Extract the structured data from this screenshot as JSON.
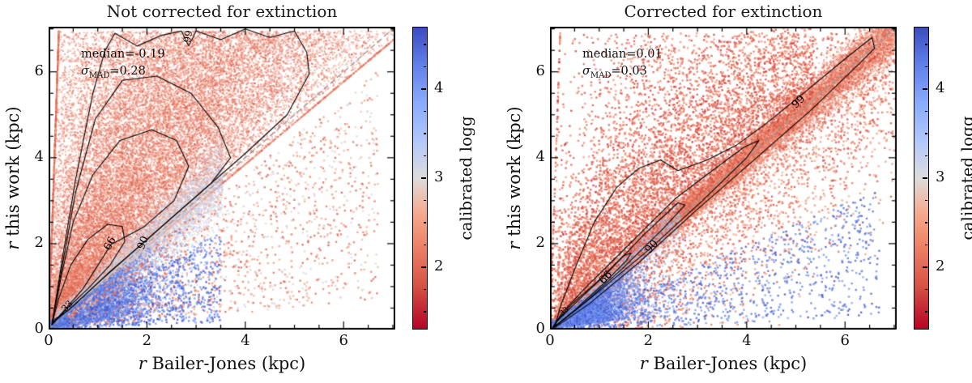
{
  "figure": {
    "background": "#ffffff"
  },
  "colormap": {
    "stops": [
      [
        0,
        "#b40426"
      ],
      [
        0.14,
        "#d65244"
      ],
      [
        0.28,
        "#ee8468"
      ],
      [
        0.38,
        "#f6a98c"
      ],
      [
        0.5,
        "#dddcdc"
      ],
      [
        0.62,
        "#b2c9fb"
      ],
      [
        0.75,
        "#88abfd"
      ],
      [
        0.88,
        "#5f7fe8"
      ],
      [
        1,
        "#3b4cc0"
      ]
    ]
  },
  "chart_data": [
    {
      "type": "scatter",
      "panel": "left",
      "title": "Not corrected for extinction",
      "xlabel_italic": "r",
      "xlabel_rest": " Bailer-Jones (kpc)",
      "ylabel_italic": "r",
      "ylabel_rest": " this work (kpc)",
      "xlim": [
        0,
        7.05
      ],
      "ylim": [
        0,
        7.05
      ],
      "xticks_major": [
        0,
        2,
        4,
        6
      ],
      "yticks_major": [
        0,
        2,
        4,
        6
      ],
      "tick_minor_step": 0.5,
      "annotation": {
        "median": "median=-0.19",
        "sigma_symbol": "σ",
        "sigma_sub": "MAD",
        "sigma_value": "=0.28",
        "x": 0.72,
        "y": 6.42
      },
      "identity_line": {
        "style": "dashed",
        "color": "#999999",
        "from": [
          0,
          0
        ],
        "to": [
          7.05,
          7.05
        ]
      },
      "contour_levels": [
        33,
        66,
        90,
        99
      ],
      "contours": [
        {
          "level": 33,
          "points": [
            [
              0.06,
              0.1
            ],
            [
              0.2,
              0.7
            ],
            [
              0.45,
              1.5
            ],
            [
              0.8,
              2.1
            ],
            [
              1.2,
              2.45
            ],
            [
              1.5,
              2.4
            ],
            [
              1.55,
              2.05
            ],
            [
              1.25,
              1.5
            ],
            [
              0.8,
              0.95
            ],
            [
              0.38,
              0.5
            ],
            [
              0.06,
              0.1
            ]
          ]
        },
        {
          "level": 66,
          "points": [
            [
              0.07,
              0.12
            ],
            [
              0.25,
              1.2
            ],
            [
              0.5,
              2.5
            ],
            [
              0.9,
              3.6
            ],
            [
              1.45,
              4.4
            ],
            [
              2.1,
              4.65
            ],
            [
              2.6,
              4.4
            ],
            [
              2.85,
              3.8
            ],
            [
              2.55,
              3.0
            ],
            [
              1.95,
              2.4
            ],
            [
              1.27,
              1.98
            ],
            [
              0.7,
              0.95
            ],
            [
              0.07,
              0.12
            ]
          ]
        },
        {
          "level": 90,
          "points": [
            [
              0.07,
              0.15
            ],
            [
              0.28,
              1.5
            ],
            [
              0.55,
              3.2
            ],
            [
              0.95,
              4.9
            ],
            [
              1.5,
              5.8
            ],
            [
              2.2,
              5.9
            ],
            [
              2.9,
              5.5
            ],
            [
              3.45,
              4.7
            ],
            [
              3.7,
              4.0
            ],
            [
              3.3,
              3.4
            ],
            [
              2.6,
              2.7
            ],
            [
              1.93,
              2.02
            ],
            [
              1.2,
              1.3
            ],
            [
              0.5,
              0.55
            ],
            [
              0.07,
              0.15
            ]
          ]
        },
        {
          "level": 99,
          "points": [
            [
              0.08,
              0.2
            ],
            [
              0.3,
              1.8
            ],
            [
              0.55,
              3.5
            ],
            [
              0.9,
              5.5
            ],
            [
              1.15,
              6.5
            ],
            [
              1.35,
              6.9
            ],
            [
              1.8,
              6.6
            ],
            [
              2.3,
              6.85
            ],
            [
              2.7,
              6.95
            ],
            [
              2.85,
              6.6
            ],
            [
              3.0,
              6.95
            ],
            [
              3.5,
              6.75
            ],
            [
              4.0,
              7.0
            ],
            [
              4.5,
              6.8
            ],
            [
              5.0,
              6.95
            ],
            [
              5.25,
              6.45
            ],
            [
              5.3,
              5.95
            ],
            [
              4.85,
              5.0
            ],
            [
              4.0,
              4.1
            ],
            [
              3.0,
              3.1
            ],
            [
              2.0,
              2.1
            ],
            [
              1.0,
              1.08
            ],
            [
              0.4,
              0.45
            ],
            [
              0.08,
              0.2
            ]
          ]
        }
      ],
      "contour_labels": [
        {
          "text": "33",
          "x": 0.38,
          "y": 0.55,
          "rot": -47,
          "fs": 11
        },
        {
          "text": "66",
          "x": 1.25,
          "y": 2.0,
          "rot": -62,
          "fs": 13
        },
        {
          "text": "90",
          "x": 1.93,
          "y": 2.02,
          "rot": -68,
          "fs": 13
        },
        {
          "text": "99",
          "x": 2.84,
          "y": 6.82,
          "rot": -80,
          "fs": 12
        }
      ],
      "clouds": [
        {
          "kind": "fan",
          "seed": 11,
          "n": 26000,
          "ymax": 6.95,
          "ypow": 0.8,
          "betaMu": 0.5,
          "betaSig": 0.3,
          "logg": [
            1.7,
            2.6
          ],
          "alpha": 0.5,
          "size": 2
        },
        {
          "kind": "band",
          "seed": 12,
          "n": 7000,
          "x0": 0.15,
          "xr": 3.4,
          "xpow": 1.2,
          "rel": 0.13,
          "abs": 0.1,
          "logg": [
            2.5,
            3.6
          ],
          "alpha": 0.5,
          "size": 2
        },
        {
          "kind": "dwarf",
          "seed": 13,
          "n": 9000,
          "sx": 0.95,
          "f0": 0.15,
          "fr": 0.75,
          "logg": [
            3.85,
            4.7
          ],
          "alpha": 0.55,
          "size": 2
        },
        {
          "kind": "wedge",
          "seed": 14,
          "n": 1600,
          "x0": 0.4,
          "xr": 6.3,
          "f0": 0.1,
          "fr": 0.8,
          "logg": [
            1.8,
            3.2
          ],
          "alpha": 0.8,
          "size": 2.4
        },
        {
          "kind": "wedge",
          "seed": 15,
          "n": 900,
          "x0": 0.3,
          "xr": 3.2,
          "f0": 0.05,
          "fr": 0.6,
          "logg": [
            3.9,
            4.7
          ],
          "alpha": 0.8,
          "size": 2.4
        }
      ],
      "colorbar": {
        "label": "calibrated logg",
        "range": [
          1.3,
          4.7
        ],
        "ticks_major": [
          2,
          3,
          4
        ],
        "tick_minor_step": 0.25
      }
    },
    {
      "type": "scatter",
      "panel": "right",
      "title": "Corrected for extinction",
      "xlabel_italic": "r",
      "xlabel_rest": " Bailer-Jones (kpc)",
      "ylabel_italic": "r",
      "ylabel_rest": " this work (kpc)",
      "xlim": [
        0,
        7.05
      ],
      "ylim": [
        0,
        7.05
      ],
      "xticks_major": [
        0,
        2,
        4,
        6
      ],
      "yticks_major": [
        0,
        2,
        4,
        6
      ],
      "tick_minor_step": 0.5,
      "annotation": {
        "median": "median=0.01",
        "sigma_symbol": "σ",
        "sigma_sub": "MAD",
        "sigma_value": "=0.03",
        "x": 0.72,
        "y": 6.42
      },
      "identity_line": {
        "style": "dashed",
        "color": "#999999",
        "from": [
          0,
          0
        ],
        "to": [
          7.05,
          7.05
        ]
      },
      "contour_levels": [
        33,
        66,
        90,
        99
      ],
      "contours": [
        {
          "level": 33,
          "points": [
            [
              0.04,
              0.02
            ],
            [
              0.5,
              0.45
            ],
            [
              1.1,
              1.08
            ],
            [
              1.55,
              1.6
            ],
            [
              1.65,
              1.78
            ],
            [
              1.5,
              1.72
            ],
            [
              0.95,
              1.1
            ],
            [
              0.45,
              0.6
            ],
            [
              0.12,
              0.18
            ],
            [
              0.04,
              0.02
            ]
          ]
        },
        {
          "level": 66,
          "points": [
            [
              0.05,
              0.03
            ],
            [
              0.7,
              0.62
            ],
            [
              1.5,
              1.45
            ],
            [
              2.3,
              2.35
            ],
            [
              2.75,
              2.9
            ],
            [
              2.6,
              2.95
            ],
            [
              1.9,
              2.2
            ],
            [
              1.13,
              1.28
            ],
            [
              0.5,
              0.6
            ],
            [
              0.15,
              0.2
            ],
            [
              0.05,
              0.03
            ]
          ]
        },
        {
          "level": 90,
          "points": [
            [
              0.06,
              0.03
            ],
            [
              0.9,
              0.8
            ],
            [
              2.0,
              1.85
            ],
            [
              3.1,
              3.0
            ],
            [
              4.0,
              4.0
            ],
            [
              4.25,
              4.4
            ],
            [
              3.95,
              4.25
            ],
            [
              3.3,
              3.7
            ],
            [
              2.55,
              3.05
            ],
            [
              2.08,
              2.52
            ],
            [
              1.45,
              1.8
            ],
            [
              0.7,
              0.95
            ],
            [
              0.25,
              0.4
            ],
            [
              0.06,
              0.03
            ]
          ]
        },
        {
          "level": 99,
          "points": [
            [
              0.1,
              0.05
            ],
            [
              0.8,
              0.6
            ],
            [
              1.8,
              1.55
            ],
            [
              3.0,
              2.8
            ],
            [
              4.2,
              4.0
            ],
            [
              5.3,
              5.1
            ],
            [
              6.3,
              6.2
            ],
            [
              6.6,
              6.55
            ],
            [
              6.55,
              6.8
            ],
            [
              6.0,
              6.3
            ],
            [
              5.1,
              5.45
            ],
            [
              4.4,
              4.8
            ],
            [
              3.8,
              4.3
            ],
            [
              3.2,
              3.95
            ],
            [
              2.6,
              3.7
            ],
            [
              2.25,
              3.95
            ],
            [
              1.8,
              3.75
            ],
            [
              1.35,
              3.3
            ],
            [
              0.9,
              2.5
            ],
            [
              0.5,
              1.4
            ],
            [
              0.2,
              0.5
            ],
            [
              0.1,
              0.05
            ]
          ]
        }
      ],
      "contour_labels": [
        {
          "text": "33",
          "x": 0.3,
          "y": 0.42,
          "rot": -45,
          "fs": 9
        },
        {
          "text": "66",
          "x": 1.14,
          "y": 1.21,
          "rot": -48,
          "fs": 13
        },
        {
          "text": "90",
          "x": 2.08,
          "y": 1.92,
          "rot": -47,
          "fs": 13
        },
        {
          "text": "99",
          "x": 5.05,
          "y": 5.3,
          "rot": -44,
          "fs": 13
        }
      ],
      "clouds": [
        {
          "kind": "band",
          "seed": 21,
          "n": 22000,
          "x0": 0.02,
          "xr": 7.0,
          "xpow": 1.35,
          "rel": 0.05,
          "abs": 0.05,
          "logg": [
            1.7,
            2.6
          ],
          "alpha": 0.5,
          "size": 2
        },
        {
          "kind": "band",
          "seed": 26,
          "n": 3000,
          "x0": 0.05,
          "xr": 2.6,
          "xpow": 1.2,
          "rel": 0.1,
          "abs": 0.06,
          "logg": [
            2.7,
            3.9
          ],
          "alpha": 0.5,
          "size": 2
        },
        {
          "kind": "fan",
          "seed": 27,
          "n": 3800,
          "ymax": 6.9,
          "ypow": 0.85,
          "betaMu": 0.55,
          "betaSig": 0.27,
          "logg": [
            1.6,
            2.5
          ],
          "alpha": 0.8,
          "size": 2.4
        },
        {
          "kind": "puff",
          "seed": 22,
          "n": 3000,
          "x0": 0.15,
          "xr": 5.2,
          "s": 1.2,
          "off": 0.08,
          "logg": [
            1.6,
            2.5
          ],
          "alpha": 0.8,
          "size": 2.4
        },
        {
          "kind": "below",
          "seed": 23,
          "n": 2600,
          "x0": 0.8,
          "xr": 6.2,
          "s": 1.5,
          "off": 0.08,
          "logg": [
            1.7,
            2.7
          ],
          "alpha": 0.8,
          "size": 2.4
        },
        {
          "kind": "dwarf",
          "seed": 24,
          "n": 7000,
          "sx": 0.8,
          "f0": 0.12,
          "fr": 0.75,
          "logg": [
            3.85,
            4.7
          ],
          "alpha": 0.55,
          "size": 2
        },
        {
          "kind": "wedge",
          "seed": 25,
          "n": 1000,
          "x0": 0.3,
          "xr": 6.4,
          "f0": 0.04,
          "fr": 0.45,
          "logg": [
            3.9,
            4.7
          ],
          "alpha": 0.8,
          "size": 2.4
        }
      ],
      "colorbar": {
        "label": "calibrated logg",
        "range": [
          1.3,
          4.7
        ],
        "ticks_major": [
          2,
          3,
          4
        ],
        "tick_minor_step": 0.25
      }
    }
  ]
}
